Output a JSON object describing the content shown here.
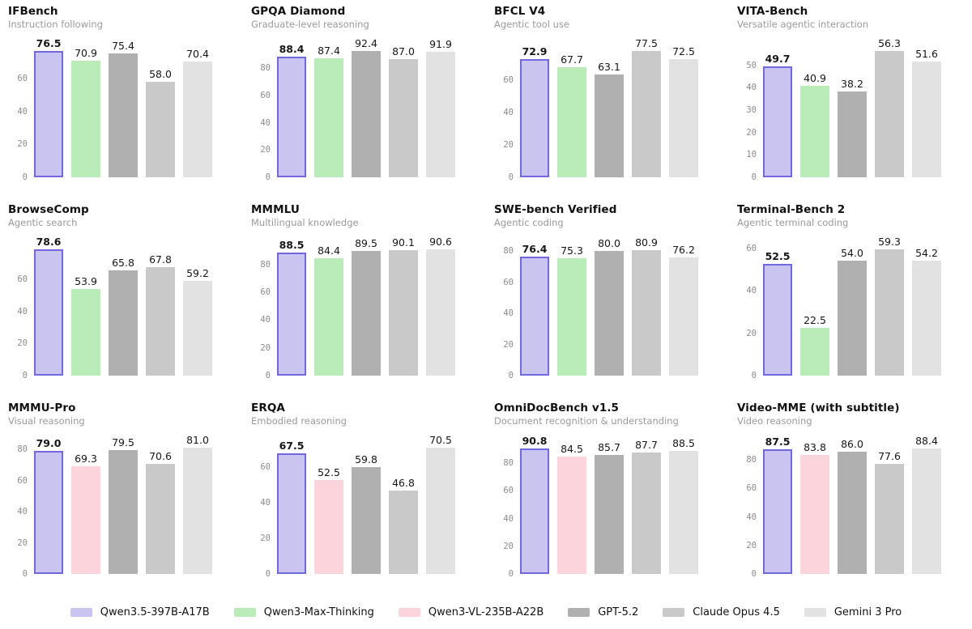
{
  "figure": {
    "background": "#ffffff"
  },
  "colors": {
    "title": "#111111",
    "subtitle": "#9a9a9a",
    "tick": "#8b8b8b",
    "value_label": "#161616",
    "highlight_border": "#7168de"
  },
  "legend": {
    "items": [
      {
        "label": "Qwen3.5-397B-A17B",
        "fill": "#c9c4f0",
        "border": "#7168de"
      },
      {
        "label": "Qwen3-Max-Thinking",
        "fill": "#b9ecb8"
      },
      {
        "label": "Qwen3-VL-235B-A22B",
        "fill": "#fcd4dc"
      },
      {
        "label": "GPT-5.2",
        "fill": "#b0b0b0"
      },
      {
        "label": "Claude Opus 4.5",
        "fill": "#c9c9c9"
      },
      {
        "label": "Gemini 3 Pro",
        "fill": "#e2e2e2"
      }
    ]
  },
  "chart_data": [
    {
      "type": "bar",
      "title": "IFBench",
      "subtitle": "Instruction following",
      "yticks": [
        0,
        20,
        40,
        60
      ],
      "ylim": [
        0,
        82.6
      ],
      "grid": false,
      "legend_position": "bottom-shared",
      "series": [
        {
          "name": "Qwen3.5-397B-A17B",
          "value": 76.5,
          "highlight": true
        },
        {
          "name": "Qwen3-Max-Thinking",
          "value": 70.9
        },
        {
          "name": "GPT-5.2",
          "value": 75.4
        },
        {
          "name": "Claude Opus 4.5",
          "value": 58.0
        },
        {
          "name": "Gemini 3 Pro",
          "value": 70.4
        }
      ]
    },
    {
      "type": "bar",
      "title": "GPQA Diamond",
      "subtitle": "Graduate-level reasoning",
      "yticks": [
        0,
        20,
        40,
        60,
        80
      ],
      "ylim": [
        0,
        99.8
      ],
      "grid": false,
      "series": [
        {
          "name": "Qwen3.5-397B-A17B",
          "value": 88.4,
          "highlight": true
        },
        {
          "name": "Qwen3-Max-Thinking",
          "value": 87.4
        },
        {
          "name": "GPT-5.2",
          "value": 92.4
        },
        {
          "name": "Claude Opus 4.5",
          "value": 87.0
        },
        {
          "name": "Gemini 3 Pro",
          "value": 91.9
        }
      ]
    },
    {
      "type": "bar",
      "title": "BFCL V4",
      "subtitle": "Agentic tool use",
      "yticks": [
        0,
        20,
        40,
        60
      ],
      "ylim": [
        0,
        83.7
      ],
      "grid": false,
      "series": [
        {
          "name": "Qwen3.5-397B-A17B",
          "value": 72.9,
          "highlight": true
        },
        {
          "name": "Qwen3-Max-Thinking",
          "value": 67.7
        },
        {
          "name": "GPT-5.2",
          "value": 63.1
        },
        {
          "name": "Claude Opus 4.5",
          "value": 77.5
        },
        {
          "name": "Gemini 3 Pro",
          "value": 72.5
        }
      ]
    },
    {
      "type": "bar",
      "title": "VITA-Bench",
      "subtitle": "Versatile agentic interaction",
      "yticks": [
        0,
        10,
        20,
        30,
        40,
        50
      ],
      "ylim": [
        0,
        60.8
      ],
      "grid": false,
      "series": [
        {
          "name": "Qwen3.5-397B-A17B",
          "value": 49.7,
          "highlight": true
        },
        {
          "name": "Qwen3-Max-Thinking",
          "value": 40.9
        },
        {
          "name": "GPT-5.2",
          "value": 38.2
        },
        {
          "name": "Claude Opus 4.5",
          "value": 56.3
        },
        {
          "name": "Gemini 3 Pro",
          "value": 51.6
        }
      ]
    },
    {
      "type": "bar",
      "title": "BrowseComp",
      "subtitle": "Agentic search",
      "yticks": [
        0,
        20,
        40,
        60
      ],
      "ylim": [
        0,
        84.9
      ],
      "grid": false,
      "series": [
        {
          "name": "Qwen3.5-397B-A17B",
          "value": 78.6,
          "highlight": true
        },
        {
          "name": "Qwen3-Max-Thinking",
          "value": 53.9
        },
        {
          "name": "GPT-5.2",
          "value": 65.8
        },
        {
          "name": "Claude Opus 4.5",
          "value": 67.8
        },
        {
          "name": "Gemini 3 Pro",
          "value": 59.2
        }
      ]
    },
    {
      "type": "bar",
      "title": "MMMLU",
      "subtitle": "Multilingual knowledge",
      "yticks": [
        0,
        20,
        40,
        60,
        80
      ],
      "ylim": [
        0,
        97.8
      ],
      "grid": false,
      "series": [
        {
          "name": "Qwen3.5-397B-A17B",
          "value": 88.5,
          "highlight": true
        },
        {
          "name": "Qwen3-Max-Thinking",
          "value": 84.4
        },
        {
          "name": "GPT-5.2",
          "value": 89.5
        },
        {
          "name": "Claude Opus 4.5",
          "value": 90.1
        },
        {
          "name": "Gemini 3 Pro",
          "value": 90.6
        }
      ]
    },
    {
      "type": "bar",
      "title": "SWE-bench Verified",
      "subtitle": "Agentic coding",
      "yticks": [
        0,
        20,
        40,
        60,
        80
      ],
      "ylim": [
        0,
        87.4
      ],
      "grid": false,
      "series": [
        {
          "name": "Qwen3.5-397B-A17B",
          "value": 76.4,
          "highlight": true
        },
        {
          "name": "Qwen3-Max-Thinking",
          "value": 75.3
        },
        {
          "name": "GPT-5.2",
          "value": 80.0
        },
        {
          "name": "Claude Opus 4.5",
          "value": 80.9
        },
        {
          "name": "Gemini 3 Pro",
          "value": 76.2
        }
      ]
    },
    {
      "type": "bar",
      "title": "Terminal-Bench 2",
      "subtitle": "Agentic terminal coding",
      "yticks": [
        0,
        20,
        40,
        60
      ],
      "ylim": [
        0,
        64.0
      ],
      "grid": false,
      "series": [
        {
          "name": "Qwen3.5-397B-A17B",
          "value": 52.5,
          "highlight": true
        },
        {
          "name": "Qwen3-Max-Thinking",
          "value": 22.5
        },
        {
          "name": "GPT-5.2",
          "value": 54.0
        },
        {
          "name": "Claude Opus 4.5",
          "value": 59.3
        },
        {
          "name": "Gemini 3 Pro",
          "value": 54.2
        }
      ]
    },
    {
      "type": "bar",
      "title": "MMMU-Pro",
      "subtitle": "Visual reasoning",
      "yticks": [
        0,
        20,
        40,
        60,
        80
      ],
      "ylim": [
        0,
        87.5
      ],
      "grid": false,
      "series": [
        {
          "name": "Qwen3.5-397B-A17B",
          "value": 79.0,
          "highlight": true
        },
        {
          "name": "Qwen3-VL-235B-A22B",
          "value": 69.3
        },
        {
          "name": "GPT-5.2",
          "value": 79.5
        },
        {
          "name": "Claude Opus 4.5",
          "value": 70.6
        },
        {
          "name": "Gemini 3 Pro",
          "value": 81.0
        }
      ]
    },
    {
      "type": "bar",
      "title": "ERQA",
      "subtitle": "Embodied reasoning",
      "yticks": [
        0,
        20,
        40,
        60
      ],
      "ylim": [
        0,
        76.1
      ],
      "grid": false,
      "series": [
        {
          "name": "Qwen3.5-397B-A17B",
          "value": 67.5,
          "highlight": true
        },
        {
          "name": "Qwen3-VL-235B-A22B",
          "value": 52.5
        },
        {
          "name": "GPT-5.2",
          "value": 59.8
        },
        {
          "name": "Claude Opus 4.5",
          "value": 46.8
        },
        {
          "name": "Gemini 3 Pro",
          "value": 70.5
        }
      ]
    },
    {
      "type": "bar",
      "title": "OmniDocBench v1.5",
      "subtitle": "Document recognition & understanding",
      "yticks": [
        0,
        20,
        40,
        60,
        80
      ],
      "ylim": [
        0,
        98.1
      ],
      "grid": false,
      "series": [
        {
          "name": "Qwen3.5-397B-A17B",
          "value": 90.8,
          "highlight": true
        },
        {
          "name": "Qwen3-VL-235B-A22B",
          "value": 84.5
        },
        {
          "name": "GPT-5.2",
          "value": 85.7
        },
        {
          "name": "Claude Opus 4.5",
          "value": 87.7
        },
        {
          "name": "Gemini 3 Pro",
          "value": 88.5
        }
      ]
    },
    {
      "type": "bar",
      "title": "Video-MME (with subtitle)",
      "subtitle": "Video reasoning",
      "yticks": [
        0,
        20,
        40,
        60,
        80
      ],
      "ylim": [
        0,
        95.5
      ],
      "grid": false,
      "series": [
        {
          "name": "Qwen3.5-397B-A17B",
          "value": 87.5,
          "highlight": true
        },
        {
          "name": "Qwen3-VL-235B-A22B",
          "value": 83.8
        },
        {
          "name": "GPT-5.2",
          "value": 86.0
        },
        {
          "name": "Claude Opus 4.5",
          "value": 77.6
        },
        {
          "name": "Gemini 3 Pro",
          "value": 88.4
        }
      ]
    }
  ]
}
